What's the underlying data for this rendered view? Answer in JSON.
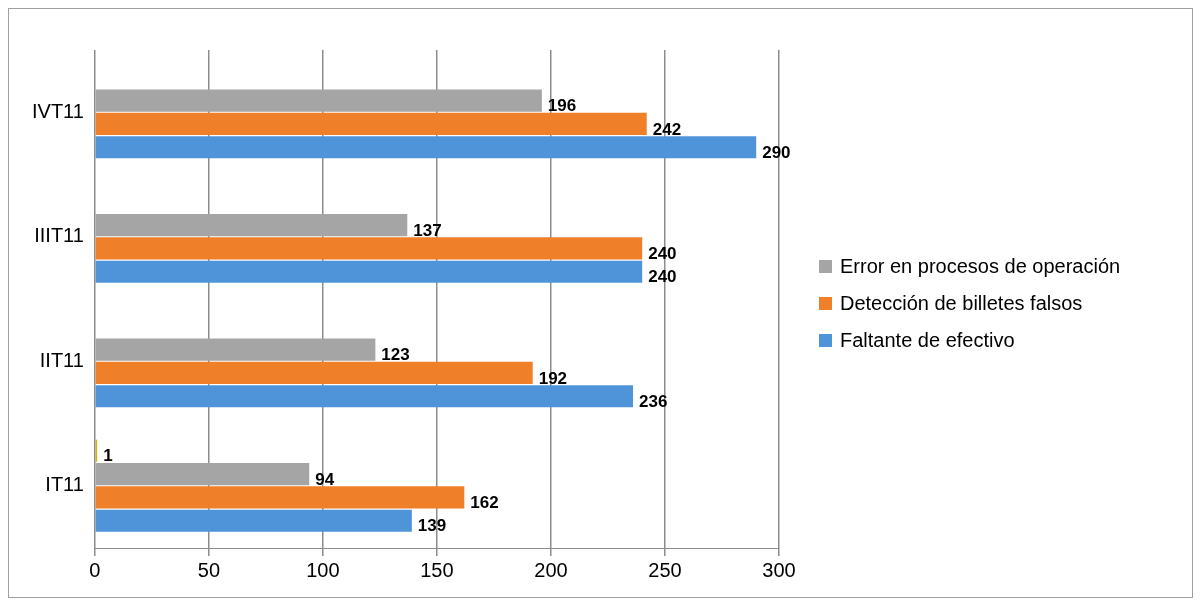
{
  "chart_data": {
    "type": "bar",
    "orientation": "horizontal",
    "categories": [
      "IVT11",
      "IIIT11",
      "IIT11",
      "IT11"
    ],
    "series": [
      {
        "color": "#d4b106",
        "values": [
          null,
          null,
          null,
          1
        ]
      },
      {
        "name": "Error en procesos de operación",
        "color": "#a5a5a5",
        "values": [
          196,
          137,
          123,
          94
        ]
      },
      {
        "name": "Detección de billetes falsos",
        "color": "#f07f2a",
        "values": [
          242,
          240,
          192,
          162
        ]
      },
      {
        "name": "Faltante de efectivo",
        "color": "#4f94d9",
        "values": [
          290,
          240,
          236,
          139
        ]
      }
    ],
    "xlim": [
      0,
      300
    ],
    "xticks": [
      0,
      50,
      100,
      150,
      200,
      250,
      300
    ],
    "grid": "x",
    "legend": "right",
    "data_labels": true
  }
}
